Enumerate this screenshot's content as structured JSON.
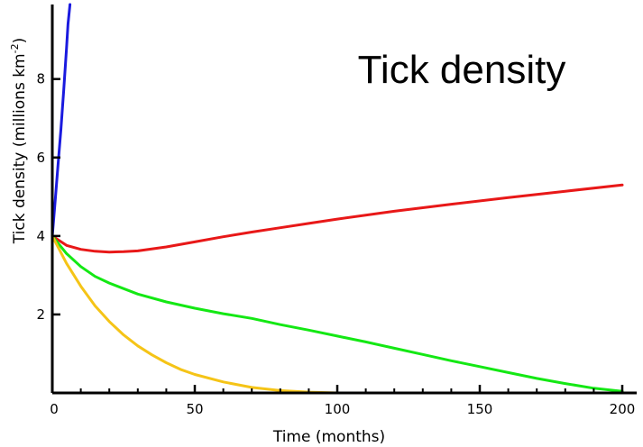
{
  "chart_data": {
    "type": "line",
    "title": "Tick density",
    "xlabel": "Time (months)",
    "ylabel": {
      "text": "Tick density  (millions km",
      "sup": "-2",
      "close": ")"
    },
    "xlim": [
      0,
      200
    ],
    "ylim": [
      0,
      9.9
    ],
    "x_ticks": [
      0,
      50,
      100,
      150,
      200
    ],
    "x_minor_ticks": [
      10,
      20,
      30,
      40,
      60,
      70,
      80,
      90,
      110,
      120,
      130,
      140,
      160,
      170,
      180,
      190
    ],
    "y_ticks": [
      2,
      4,
      6,
      8
    ],
    "grid": false,
    "series": [
      {
        "color": "#1a1adf",
        "x": [
          0,
          1,
          2,
          3,
          4,
          5,
          5.5,
          6.2
        ],
        "y": [
          4.0,
          4.9,
          5.8,
          6.7,
          7.7,
          8.8,
          9.4,
          9.9
        ]
      },
      {
        "color": "#e81818",
        "x": [
          0,
          5,
          10,
          15,
          20,
          25,
          30,
          40,
          50,
          60,
          70,
          80,
          90,
          100,
          120,
          140,
          160,
          180,
          200
        ],
        "y": [
          4.0,
          3.76,
          3.66,
          3.61,
          3.59,
          3.6,
          3.62,
          3.72,
          3.85,
          3.98,
          4.1,
          4.21,
          4.32,
          4.43,
          4.63,
          4.81,
          4.98,
          5.14,
          5.3
        ]
      },
      {
        "color": "#14e814",
        "x": [
          0,
          5,
          10,
          15,
          20,
          30,
          40,
          50,
          60,
          70,
          80,
          90,
          100,
          110,
          120,
          130,
          140,
          150,
          160,
          170,
          180,
          190,
          200
        ],
        "y": [
          4.0,
          3.55,
          3.22,
          2.97,
          2.8,
          2.52,
          2.32,
          2.16,
          2.02,
          1.9,
          1.74,
          1.6,
          1.45,
          1.3,
          1.14,
          0.98,
          0.82,
          0.67,
          0.52,
          0.37,
          0.24,
          0.12,
          0.04
        ]
      },
      {
        "color": "#f5c417",
        "x": [
          0,
          5,
          10,
          15,
          20,
          25,
          30,
          35,
          40,
          45,
          50,
          60,
          70,
          80,
          90,
          100,
          110
        ],
        "y": [
          4.0,
          3.3,
          2.72,
          2.22,
          1.82,
          1.48,
          1.2,
          0.97,
          0.77,
          0.6,
          0.47,
          0.28,
          0.14,
          0.06,
          0.02,
          0.0,
          0.0
        ]
      }
    ]
  }
}
